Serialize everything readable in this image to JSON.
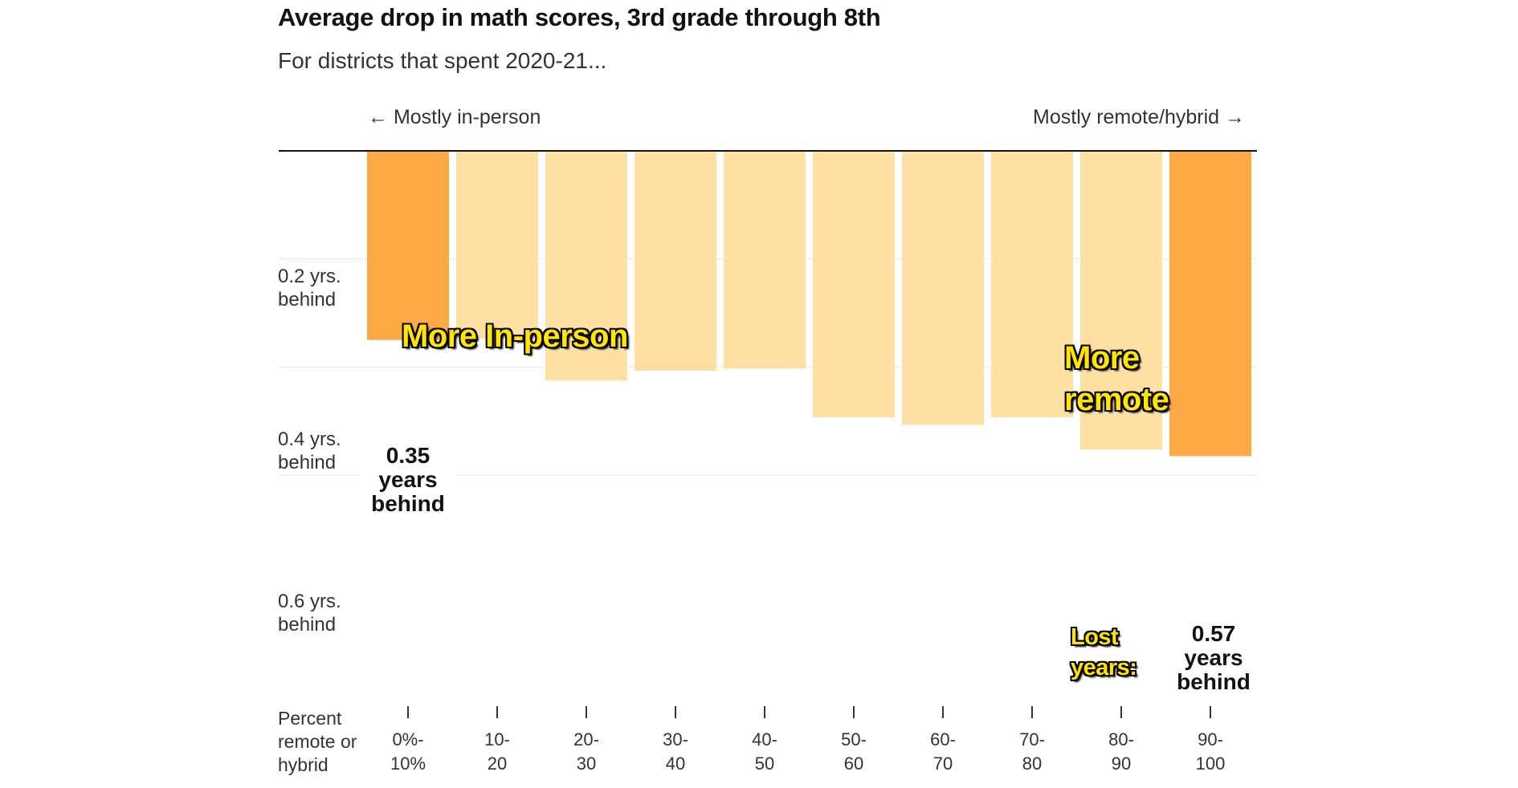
{
  "chart_data": {
    "type": "bar",
    "title": "Average drop in math scores, 3rd grade through 8th",
    "subtitle": "For districts that spent 2020-21...",
    "direction_left": "← Mostly in-person",
    "direction_right": "Mostly remote/hybrid →",
    "xlabel": [
      "Percent",
      "remote or",
      "hybrid"
    ],
    "categories": [
      [
        "0%-",
        "10%"
      ],
      [
        "10-",
        "20"
      ],
      [
        "20-",
        "30"
      ],
      [
        "30-",
        "40"
      ],
      [
        "40-",
        "50"
      ],
      [
        "50-",
        "60"
      ],
      [
        "60-",
        "70"
      ],
      [
        "70-",
        "80"
      ],
      [
        "80-",
        "90"
      ],
      [
        "90-",
        "100"
      ]
    ],
    "values": [
      0.35,
      0.348,
      0.425,
      0.407,
      0.403,
      0.493,
      0.507,
      0.493,
      0.553,
      0.565
    ],
    "highlight": [
      true,
      false,
      false,
      false,
      false,
      false,
      false,
      false,
      false,
      true
    ],
    "y_ticks": [
      {
        "value": 0.2,
        "label": [
          "0.2 yrs.",
          "behind"
        ]
      },
      {
        "value": 0.4,
        "label": [
          "0.4 yrs.",
          "behind"
        ]
      },
      {
        "value": 0.6,
        "label": [
          "0.6 yrs.",
          "behind"
        ]
      }
    ],
    "ylim": [
      0,
      0.6
    ],
    "callouts": {
      "first": [
        "0.35",
        "years",
        "behind"
      ],
      "last": [
        "0.57",
        "years",
        "behind"
      ]
    },
    "colors": {
      "highlight": "#fdaa46",
      "normal": "#fee0a3",
      "axis": "#121212",
      "grid": "#e6e6e6"
    }
  },
  "overlays": {
    "more_in_person": "More In-person",
    "more_remote": [
      "More",
      "remote"
    ],
    "lost_years": [
      "Lost",
      "years:"
    ]
  }
}
